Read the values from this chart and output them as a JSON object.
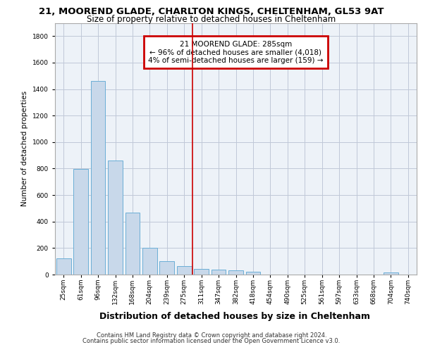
{
  "title1": "21, MOOREND GLADE, CHARLTON KINGS, CHELTENHAM, GL53 9AT",
  "title2": "Size of property relative to detached houses in Cheltenham",
  "xlabel": "Distribution of detached houses by size in Cheltenham",
  "ylabel": "Number of detached properties",
  "footer1": "Contains HM Land Registry data © Crown copyright and database right 2024.",
  "footer2": "Contains public sector information licensed under the Open Government Licence v3.0.",
  "annotation_title": "21 MOOREND GLADE: 285sqm",
  "annotation_line1": "← 96% of detached houses are smaller (4,018)",
  "annotation_line2": "4% of semi-detached houses are larger (159) →",
  "bar_categories": [
    "25sqm",
    "61sqm",
    "96sqm",
    "132sqm",
    "168sqm",
    "204sqm",
    "239sqm",
    "275sqm",
    "311sqm",
    "347sqm",
    "382sqm",
    "418sqm",
    "454sqm",
    "490sqm",
    "525sqm",
    "561sqm",
    "597sqm",
    "633sqm",
    "668sqm",
    "704sqm",
    "740sqm"
  ],
  "bar_values": [
    120,
    795,
    1460,
    860,
    470,
    200,
    100,
    65,
    45,
    35,
    30,
    20,
    0,
    0,
    0,
    0,
    0,
    0,
    0,
    15,
    0
  ],
  "bar_color": "#c8d8ea",
  "bar_edge_color": "#6baed6",
  "vline_color": "#cc0000",
  "vline_x_idx": 7.5,
  "ylim": [
    0,
    1900
  ],
  "yticks": [
    0,
    200,
    400,
    600,
    800,
    1000,
    1200,
    1400,
    1600,
    1800
  ],
  "bg_color": "#edf2f8",
  "grid_color": "#c0c8d8",
  "annotation_box_edgecolor": "#cc0000",
  "title1_fontsize": 9.5,
  "title2_fontsize": 8.5,
  "xlabel_fontsize": 9.0,
  "ylabel_fontsize": 7.5,
  "tick_fontsize": 6.5,
  "footer_fontsize": 6.0
}
